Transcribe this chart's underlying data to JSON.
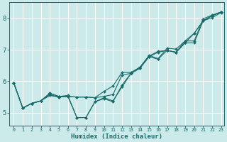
{
  "xlabel": "Humidex (Indice chaleur)",
  "ylabel": "",
  "xlim": [
    -0.5,
    23.3
  ],
  "ylim": [
    4.6,
    8.5
  ],
  "yticks": [
    5,
    6,
    7,
    8
  ],
  "xticks": [
    0,
    1,
    2,
    3,
    4,
    5,
    6,
    7,
    8,
    9,
    10,
    11,
    12,
    13,
    14,
    15,
    16,
    17,
    18,
    19,
    20,
    21,
    22,
    23
  ],
  "background_color": "#cceaea",
  "grid_color": "#ffffff",
  "line_color": "#1a6b6b",
  "lines": [
    [
      5.95,
      5.15,
      5.3,
      5.38,
      5.55,
      5.5,
      5.52,
      5.5,
      5.5,
      5.48,
      5.52,
      5.58,
      6.2,
      6.25,
      6.42,
      6.78,
      6.7,
      6.98,
      6.92,
      7.22,
      7.22,
      7.92,
      8.02,
      8.18
    ],
    [
      5.95,
      5.15,
      5.3,
      5.38,
      5.58,
      5.5,
      5.52,
      5.5,
      5.5,
      5.48,
      5.68,
      5.85,
      6.28,
      6.28,
      6.45,
      6.82,
      6.72,
      7.05,
      7.02,
      7.28,
      7.28,
      7.98,
      8.1,
      8.2
    ],
    [
      5.95,
      5.15,
      5.3,
      5.38,
      5.62,
      5.52,
      5.52,
      4.85,
      4.85,
      5.35,
      5.45,
      5.35,
      5.88,
      6.25,
      6.42,
      6.78,
      6.92,
      6.98,
      6.92,
      7.22,
      7.52,
      7.92,
      8.08,
      8.2
    ],
    [
      5.95,
      5.15,
      5.3,
      5.38,
      5.62,
      5.52,
      5.55,
      4.85,
      4.85,
      5.35,
      5.48,
      5.38,
      5.82,
      6.25,
      6.45,
      6.8,
      6.95,
      6.98,
      6.92,
      7.28,
      7.52,
      7.92,
      8.08,
      8.2
    ]
  ]
}
